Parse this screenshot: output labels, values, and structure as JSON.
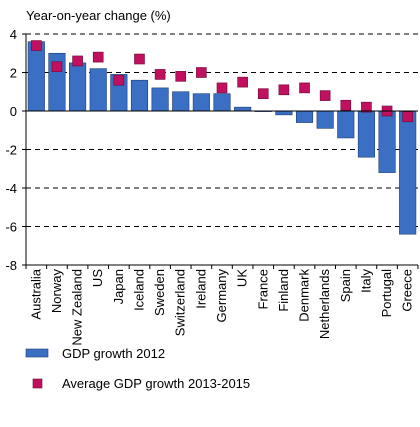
{
  "chart_data": {
    "type": "bar",
    "ylabel": "Year-on-year change (%)",
    "ylim": [
      -8,
      4
    ],
    "yticks": [
      4,
      2,
      0,
      -2,
      -4,
      -6,
      -8
    ],
    "grid": "dashed horizontal",
    "legend_position": "bottom",
    "categories": [
      "Australia",
      "Norway",
      "New Zealand",
      "US",
      "Japan",
      "Iceland",
      "Sweden",
      "Switzerland",
      "Ireland",
      "Germany",
      "UK",
      "France",
      "Finland",
      "Denmark",
      "Netherlands",
      "Spain",
      "Italy",
      "Portugal",
      "Greece"
    ],
    "series": [
      {
        "name": "GDP growth 2012",
        "kind": "bar",
        "color": "#3a6fc4",
        "values": [
          3.6,
          3.0,
          2.5,
          2.2,
          1.9,
          1.6,
          1.2,
          1.0,
          0.9,
          0.9,
          0.2,
          0.0,
          -0.2,
          -0.6,
          -0.9,
          -1.4,
          -2.4,
          -3.2,
          -6.4
        ]
      },
      {
        "name": "Average GDP growth 2013-2015",
        "kind": "marker",
        "color": "#c0105f",
        "values": [
          3.4,
          2.3,
          2.6,
          2.8,
          1.6,
          2.7,
          1.9,
          1.8,
          2.0,
          1.2,
          1.5,
          0.9,
          1.1,
          1.2,
          0.8,
          0.3,
          0.2,
          0.0,
          -0.3
        ]
      }
    ]
  }
}
